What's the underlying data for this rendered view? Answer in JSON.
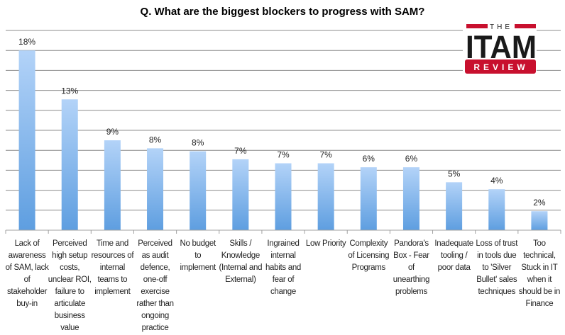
{
  "chart_data": {
    "type": "bar",
    "title": "Q. What are the biggest blockers to progress with SAM?",
    "xlabel": "",
    "ylabel": "",
    "ylim": [
      0,
      20
    ],
    "grid": true,
    "grid_step": 2,
    "categories": [
      "Lack of awareness of SAM, lack of stakeholder buy-in",
      "Perceived high setup costs, unclear ROI, failure to articulate business value",
      "Time and resources of internal teams to implement",
      "Perceived as audit defence, one-off exercise rather than ongoing practice",
      "No budget to implement",
      "Skills / Knowledge (Internal and External)",
      "Ingrained internal habits and fear of change",
      "Low Priority",
      "Complexity of Licensing Programs",
      "Pandora's Box - Fear of unearthing problems",
      "Inadequate tooling / poor data",
      "Loss of trust in tools due to 'Silver Bullet' sales techniques",
      "Too technical, Stuck in IT when it should be in Finance"
    ],
    "values": [
      18.0,
      13.1,
      9.0,
      8.2,
      7.9,
      7.1,
      6.7,
      6.7,
      6.3,
      6.3,
      4.8,
      4.1,
      1.9
    ],
    "data_labels": [
      "18%",
      "13%",
      "9%",
      "8%",
      "8%",
      "7%",
      "7%",
      "7%",
      "6%",
      "6%",
      "5%",
      "4%",
      "2%"
    ],
    "colors": {
      "bar_top": "#b3d3f8",
      "bar_bottom": "#5e9ee0",
      "grid": "#8c8c8c"
    }
  },
  "logo": {
    "top": "THE",
    "main": "ITAM",
    "bottom": "REVIEW",
    "red": "#c8102e"
  }
}
